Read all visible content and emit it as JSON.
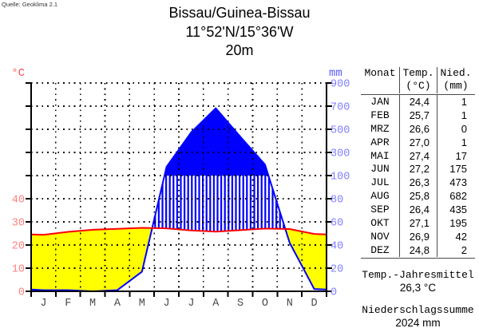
{
  "source_note": "Quelle: Geoklima 2.1",
  "station": {
    "name": "Bissau/Guinea-Bissau",
    "coordinates": "11°52'N/15°36'W",
    "elevation": "20m"
  },
  "chart_data": {
    "type": "line",
    "subtype": "walter-lieth-climate-diagram",
    "title": "Bissau/Guinea-Bissau 11°52'N/15°36'W 20m",
    "categories": [
      "JAN",
      "FEB",
      "MRZ",
      "APR",
      "MAI",
      "JUN",
      "JUL",
      "AUG",
      "SEP",
      "OKT",
      "NOV",
      "DEZ"
    ],
    "month_labels": [
      "J",
      "F",
      "M",
      "A",
      "M",
      "J",
      "J",
      "A",
      "S",
      "O",
      "N",
      "D"
    ],
    "series": [
      {
        "name": "Temp. (°C)",
        "type": "line",
        "color": "#ff0000",
        "values": [
          24.4,
          25.7,
          26.6,
          27.0,
          27.4,
          27.2,
          26.3,
          25.8,
          26.4,
          27.1,
          26.9,
          24.8
        ]
      },
      {
        "name": "Nied. (mm)",
        "type": "line",
        "color": "#0000ff",
        "values": [
          1,
          1,
          0,
          1,
          17,
          175,
          473,
          682,
          435,
          195,
          42,
          2
        ]
      }
    ],
    "left_axis": {
      "unit": "°C",
      "tick_labels": [
        0,
        10,
        20,
        30,
        40
      ]
    },
    "right_axis": {
      "unit": "mm",
      "tick_labels": [
        0,
        20,
        40,
        60,
        80,
        100,
        300,
        500,
        700,
        900
      ]
    },
    "scale_note": "2 mm = 1 °C below 100 mm; precipitation scale compressed (200 mm/div) above 100 mm",
    "grid": "dotted",
    "fills": {
      "dry_season": "#ffff00",
      "wet_season_below_100mm": "vertical blue hatching",
      "wet_season_above_100mm": "#0000ff"
    }
  },
  "table": {
    "headers": {
      "month": "Monat",
      "temp": "Temp.",
      "temp_unit": "(°C)",
      "prec": "Nied.",
      "prec_unit": "(mm)"
    },
    "rows": [
      {
        "month": "JAN",
        "temp": "24,4",
        "prec": "1"
      },
      {
        "month": "FEB",
        "temp": "25,7",
        "prec": "1"
      },
      {
        "month": "MRZ",
        "temp": "26,6",
        "prec": "0"
      },
      {
        "month": "APR",
        "temp": "27,0",
        "prec": "1"
      },
      {
        "month": "MAI",
        "temp": "27,4",
        "prec": "17"
      },
      {
        "month": "JUN",
        "temp": "27,2",
        "prec": "175"
      },
      {
        "month": "JUL",
        "temp": "26,3",
        "prec": "473"
      },
      {
        "month": "AUG",
        "temp": "25,8",
        "prec": "682"
      },
      {
        "month": "SEP",
        "temp": "26,4",
        "prec": "435"
      },
      {
        "month": "OKT",
        "temp": "27,1",
        "prec": "195"
      },
      {
        "month": "NOV",
        "temp": "26,9",
        "prec": "42"
      },
      {
        "month": "DEZ",
        "temp": "24,8",
        "prec": "2"
      }
    ]
  },
  "summary": {
    "temp_label": "Temp.-Jahresmittel",
    "temp_value": "26,3 °C",
    "prec_label": "Niederschlagssumme",
    "prec_value": "2024 mm"
  },
  "colors": {
    "temp_line": "#ff0000",
    "precip_line": "#0000ff",
    "precip_fill": "#0000ff",
    "dry_fill": "#ffff00",
    "left_axis_labels": "#ff8080",
    "right_axis_labels": "#8080ff",
    "left_unit": "#ff4a4a",
    "right_unit": "#5c5cff",
    "month_labels": "#4a4a4a",
    "grid": "#000000",
    "axis": "#000000"
  }
}
